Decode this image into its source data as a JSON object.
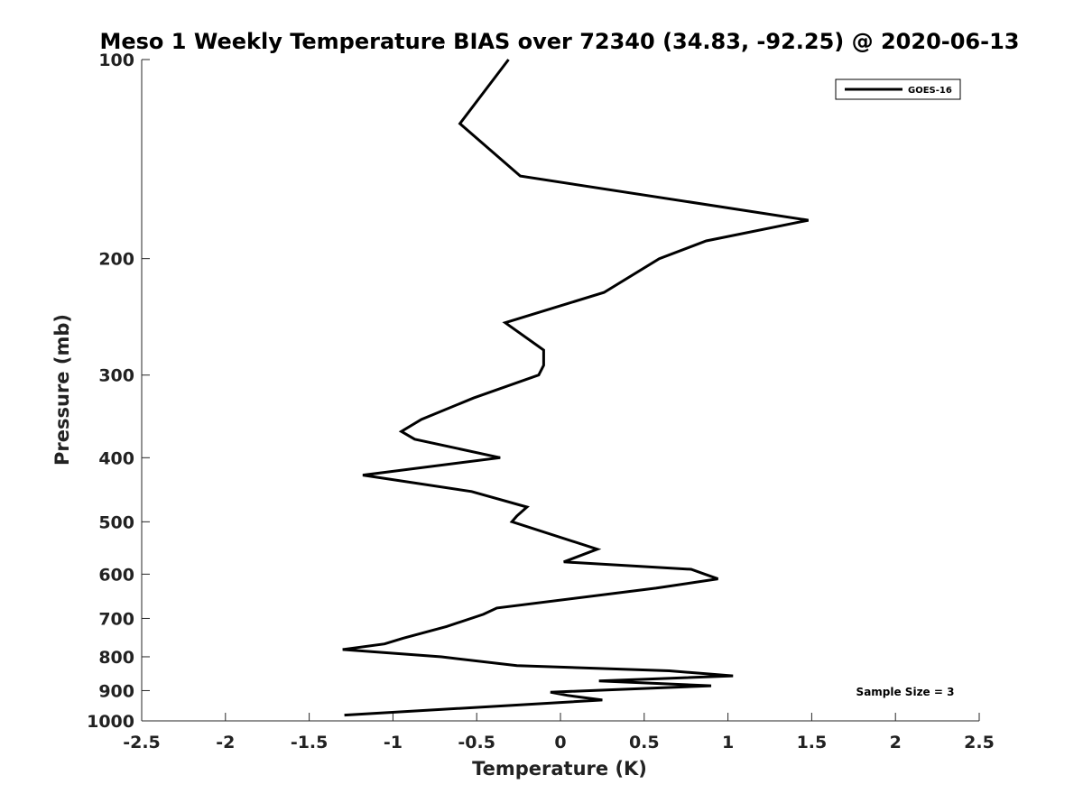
{
  "chart_data": {
    "type": "line",
    "title": "Meso 1 Weekly Temperature BIAS over 72340 (34.83, -92.25) @ 2020-06-13",
    "xlabel": "Temperature (K)",
    "ylabel": "Pressure (mb)",
    "xlim": [
      -2.5,
      2.5
    ],
    "ylim": [
      1000,
      100
    ],
    "yscale": "log",
    "y_reversed": true,
    "xticks": [
      -2.5,
      -2,
      -1.5,
      -1,
      -0.5,
      0,
      0.5,
      1,
      1.5,
      2,
      2.5
    ],
    "xtick_labels": [
      "-2.5",
      "-2",
      "-1.5",
      "-1",
      "-0.5",
      "0",
      "0.5",
      "1",
      "1.5",
      "2",
      "2.5"
    ],
    "yticks": [
      100,
      200,
      300,
      400,
      500,
      600,
      700,
      800,
      900,
      1000
    ],
    "ytick_labels": [
      "100",
      "200",
      "300",
      "400",
      "500",
      "600",
      "700",
      "800",
      "900",
      "1000"
    ],
    "grid": false,
    "legend": {
      "position": "top-right",
      "entries": [
        "GOES-16"
      ]
    },
    "annotation": "Sample Size = 3",
    "series": [
      {
        "name": "GOES-16",
        "color": "#000000",
        "points": [
          {
            "x": -0.31,
            "y": 100
          },
          {
            "x": -0.6,
            "y": 125
          },
          {
            "x": -0.24,
            "y": 150
          },
          {
            "x": 1.48,
            "y": 175
          },
          {
            "x": 0.87,
            "y": 188
          },
          {
            "x": 0.59,
            "y": 200
          },
          {
            "x": 0.26,
            "y": 225
          },
          {
            "x": -0.33,
            "y": 250
          },
          {
            "x": -0.1,
            "y": 275
          },
          {
            "x": -0.1,
            "y": 290
          },
          {
            "x": -0.13,
            "y": 300
          },
          {
            "x": -0.52,
            "y": 325
          },
          {
            "x": -0.83,
            "y": 350
          },
          {
            "x": -0.95,
            "y": 365
          },
          {
            "x": -0.87,
            "y": 375
          },
          {
            "x": -0.36,
            "y": 400
          },
          {
            "x": -1.18,
            "y": 425
          },
          {
            "x": -0.53,
            "y": 450
          },
          {
            "x": -0.2,
            "y": 475
          },
          {
            "x": -0.26,
            "y": 490
          },
          {
            "x": -0.29,
            "y": 500
          },
          {
            "x": 0.22,
            "y": 550
          },
          {
            "x": 0.02,
            "y": 575
          },
          {
            "x": 0.78,
            "y": 590
          },
          {
            "x": 0.94,
            "y": 610
          },
          {
            "x": 0.57,
            "y": 630
          },
          {
            "x": -0.38,
            "y": 675
          },
          {
            "x": -0.46,
            "y": 690
          },
          {
            "x": -0.68,
            "y": 720
          },
          {
            "x": -0.94,
            "y": 750
          },
          {
            "x": -1.05,
            "y": 765
          },
          {
            "x": -1.3,
            "y": 780
          },
          {
            "x": -0.71,
            "y": 800
          },
          {
            "x": -0.26,
            "y": 825
          },
          {
            "x": 0.65,
            "y": 840
          },
          {
            "x": 1.03,
            "y": 855
          },
          {
            "x": 0.23,
            "y": 870
          },
          {
            "x": 0.9,
            "y": 885
          },
          {
            "x": -0.06,
            "y": 905
          },
          {
            "x": 0.04,
            "y": 915
          },
          {
            "x": 0.25,
            "y": 930
          },
          {
            "x": -1.29,
            "y": 980
          }
        ]
      }
    ]
  }
}
